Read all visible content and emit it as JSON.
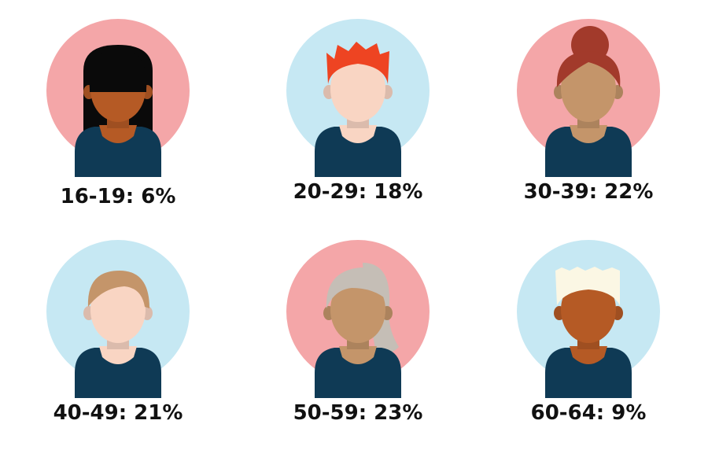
{
  "chart_data": {
    "type": "table",
    "title": "",
    "items": [
      {
        "category": "16-19",
        "value": 6,
        "label": "16-19: 6%",
        "bg": "#F4A6A8",
        "hair": "#0A0A0A",
        "skin": "#B55A25",
        "style": "long-bangs"
      },
      {
        "category": "20-29",
        "value": 18,
        "label": "20-29: 18%",
        "bg": "#C6E8F3",
        "hair": "#EE4422",
        "skin": "#F9D5C3",
        "style": "spiky"
      },
      {
        "category": "30-39",
        "value": 22,
        "label": "30-39: 22%",
        "bg": "#F4A6A8",
        "hair": "#A23A2B",
        "skin": "#C4956A",
        "style": "bun"
      },
      {
        "category": "40-49",
        "value": 21,
        "label": "40-49: 21%",
        "bg": "#C6E8F3",
        "hair": "#C4956A",
        "skin": "#F9D5C3",
        "style": "side-part"
      },
      {
        "category": "50-59",
        "value": 23,
        "label": "50-59: 23%",
        "bg": "#F4A6A8",
        "hair": "#C5BEB6",
        "skin": "#C4956A",
        "style": "long-side"
      },
      {
        "category": "60-64",
        "value": 9,
        "label": "60-64: 9%",
        "bg": "#C6E8F3",
        "hair": "#FBF7E4",
        "skin": "#B55A25",
        "style": "flat-top"
      }
    ],
    "colors": {
      "shirt": "#0F3A55",
      "label_text": "#111111"
    }
  }
}
